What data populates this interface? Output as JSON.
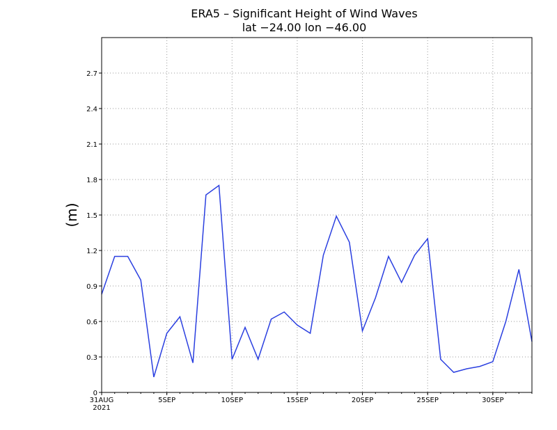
{
  "chart_data": {
    "type": "line",
    "title": "ERA5 – Significant Height of Wind Waves",
    "subtitle": "lat −24.00 lon −46.00",
    "xlabel": "",
    "ylabel": "(m)",
    "ylim": [
      0,
      3.0
    ],
    "yticks": [
      0,
      0.3,
      0.6,
      0.9,
      1.2,
      1.5,
      1.8,
      2.1,
      2.4,
      2.7
    ],
    "ytick_labels": [
      "0",
      "0.3",
      "0.6",
      "0.9",
      "1.2",
      "1.5",
      "1.8",
      "2.1",
      "2.4",
      "2.7"
    ],
    "xlim": [
      0,
      33
    ],
    "xticks": [
      {
        "day": 0,
        "label": "31AUG",
        "sublabel": "2021"
      },
      {
        "day": 5,
        "label": "5SEP"
      },
      {
        "day": 10,
        "label": "10SEP"
      },
      {
        "day": 15,
        "label": "15SEP"
      },
      {
        "day": 20,
        "label": "20SEP"
      },
      {
        "day": 25,
        "label": "25SEP"
      },
      {
        "day": 30,
        "label": "30SEP"
      }
    ],
    "grid": true,
    "line_color": "#2a3fe0",
    "series": [
      {
        "name": "Significant Height of Wind Waves",
        "x": [
          0,
          1,
          2,
          3,
          4,
          5,
          6,
          7,
          8,
          9,
          10,
          11,
          12,
          13,
          14,
          15,
          16,
          17,
          18,
          19,
          20,
          21,
          22,
          23,
          24,
          25,
          26,
          27,
          28,
          29,
          30,
          31,
          32,
          33
        ],
        "values": [
          0.83,
          1.15,
          1.15,
          0.95,
          0.13,
          0.5,
          0.64,
          0.25,
          1.67,
          1.75,
          0.28,
          0.55,
          0.28,
          0.62,
          0.68,
          0.57,
          0.5,
          1.16,
          1.49,
          1.27,
          0.52,
          0.8,
          1.15,
          0.93,
          1.16,
          1.3,
          0.28,
          0.17,
          0.2,
          0.22,
          0.26,
          0.6,
          1.04,
          0.43
        ]
      }
    ]
  }
}
